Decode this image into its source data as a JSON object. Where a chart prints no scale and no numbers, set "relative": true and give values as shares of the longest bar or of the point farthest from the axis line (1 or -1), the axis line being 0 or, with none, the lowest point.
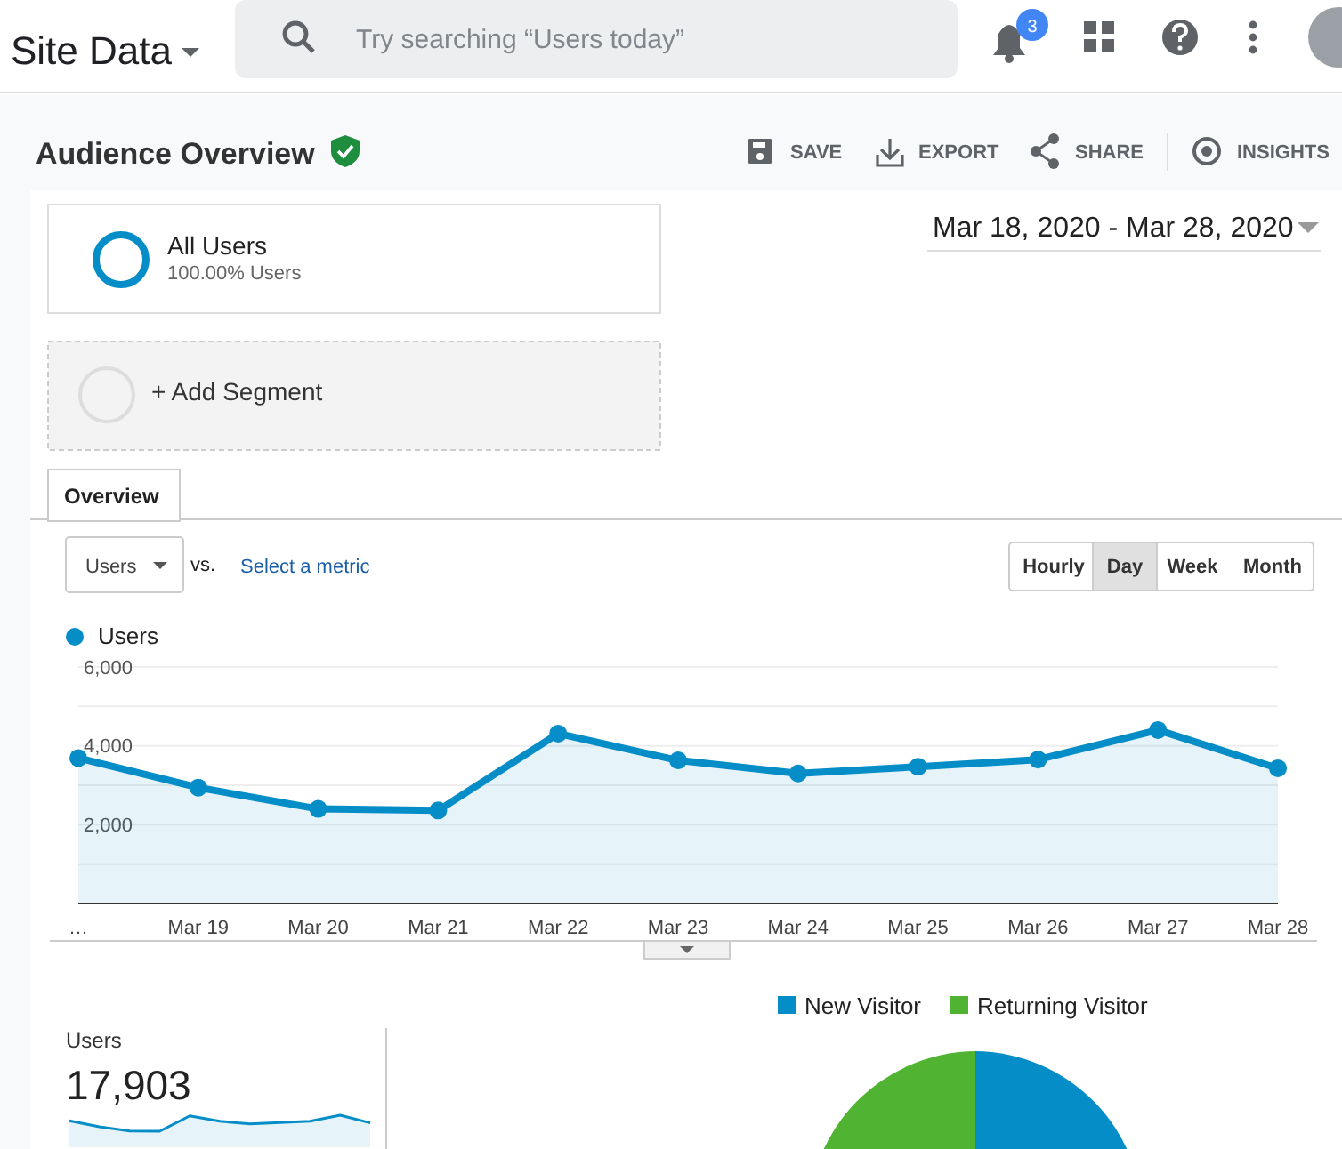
{
  "chart_data": [
    {
      "type": "area",
      "title": "Audience Overview",
      "categories": [
        "…",
        "Mar 19",
        "Mar 20",
        "Mar 21",
        "Mar 22",
        "Mar 23",
        "Mar 24",
        "Mar 25",
        "Mar 26",
        "Mar 27",
        "Mar 28"
      ],
      "series": [
        {
          "name": "Users",
          "color": "#058dc7",
          "values": [
            3690,
            2940,
            2400,
            2360,
            4310,
            3630,
            3300,
            3470,
            3650,
            4400,
            3430
          ]
        }
      ],
      "ylim": [
        0,
        6000
      ],
      "yticks": [
        {
          "value": 0,
          "label": null
        },
        {
          "value": 1000,
          "label": null
        },
        {
          "value": 2000,
          "label": "2,000"
        },
        {
          "value": 3000,
          "label": null
        },
        {
          "value": 4000,
          "label": "4,000"
        },
        {
          "value": 5000,
          "label": null
        },
        {
          "value": 6000,
          "label": "6,000"
        }
      ],
      "grid": "y",
      "legend": "top left",
      "marker": "circle",
      "annotations": [
        "Site Data",
        "Try searching “Users today”",
        "3",
        "SAVE",
        "EXPORT",
        "SHARE",
        "INSIGHTS",
        "All Users",
        "100.00% Users",
        "Mar 18, 2020 - Mar 28, 2020",
        "+ Add Segment",
        "Overview",
        "Users",
        "vs.",
        "Select a metric",
        "Hourly",
        "Day",
        "Week",
        "Month"
      ]
    },
    {
      "type": "area",
      "title": "Users",
      "relative": true,
      "categories": [
        null,
        null,
        null,
        null,
        null,
        null,
        null,
        null,
        null,
        null,
        null
      ],
      "series": [
        {
          "color": "#058dc7",
          "values": [
            0.65,
            0.28,
            0.02,
            0,
            0.96,
            0.62,
            0.46,
            0.54,
            0.63,
            1,
            0.52
          ]
        }
      ],
      "annotations": [
        "17,903"
      ]
    },
    {
      "type": "other",
      "legend": "top",
      "series": [
        {
          "name": "New Visitor",
          "color": "#058dc7"
        },
        {
          "name": "Returning Visitor",
          "color": "#50b432"
        }
      ]
    }
  ]
}
